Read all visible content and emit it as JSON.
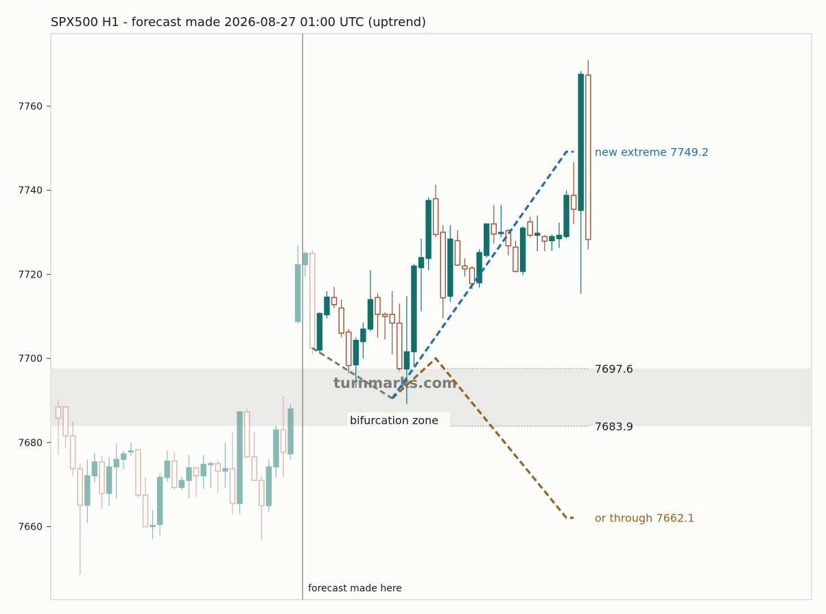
{
  "chart_data": {
    "type": "candlestick",
    "title": "SPX500 H1 - forecast made 2026-08-27 01:00 UTC (uptrend)",
    "xlabel": "",
    "ylabel": "",
    "ylim": [
      7645,
      7777
    ],
    "y_ticks": [
      7660,
      7680,
      7700,
      7720,
      7740,
      7760
    ],
    "grid": false,
    "forecast_index": 34,
    "history_candles": [
      {
        "o": 7688.5,
        "h": 7690.1,
        "l": 7677.0,
        "c": 7685.8
      },
      {
        "o": 7688.5,
        "h": 7688.5,
        "l": 7678.7,
        "c": 7681.6
      },
      {
        "o": 7681.6,
        "h": 7685.0,
        "l": 7672.1,
        "c": 7673.8
      },
      {
        "o": 7673.8,
        "h": 7675.0,
        "l": 7648.6,
        "c": 7665.1
      },
      {
        "o": 7665.1,
        "h": 7675.9,
        "l": 7660.9,
        "c": 7672.1
      },
      {
        "o": 7672.1,
        "h": 7677.5,
        "l": 7670.5,
        "c": 7675.4
      },
      {
        "o": 7675.4,
        "h": 7676.9,
        "l": 7664.2,
        "c": 7667.9
      },
      {
        "o": 7667.9,
        "h": 7676.6,
        "l": 7664.9,
        "c": 7674.2
      },
      {
        "o": 7674.2,
        "h": 7679.8,
        "l": 7666.7,
        "c": 7676.0
      },
      {
        "o": 7676.0,
        "h": 7678.0,
        "l": 7673.8,
        "c": 7677.3
      },
      {
        "o": 7678.0,
        "h": 7680.0,
        "l": 7676.9,
        "c": 7678.0
      },
      {
        "o": 7678.3,
        "h": 7678.3,
        "l": 7666.9,
        "c": 7667.5
      },
      {
        "o": 7667.5,
        "h": 7671.8,
        "l": 7660.0,
        "c": 7660.0
      },
      {
        "o": 7660.0,
        "h": 7663.8,
        "l": 7657.0,
        "c": 7660.3
      },
      {
        "o": 7660.5,
        "h": 7672.6,
        "l": 7658.0,
        "c": 7671.7
      },
      {
        "o": 7671.7,
        "h": 7678.0,
        "l": 7670.7,
        "c": 7675.6
      },
      {
        "o": 7675.6,
        "h": 7677.6,
        "l": 7668.7,
        "c": 7669.3
      },
      {
        "o": 7669.3,
        "h": 7671.9,
        "l": 7668.7,
        "c": 7671.0
      },
      {
        "o": 7671.0,
        "h": 7677.0,
        "l": 7666.7,
        "c": 7674.0
      },
      {
        "o": 7674.0,
        "h": 7674.0,
        "l": 7667.0,
        "c": 7672.1
      },
      {
        "o": 7672.1,
        "h": 7677.0,
        "l": 7669.0,
        "c": 7674.8
      },
      {
        "o": 7674.8,
        "h": 7675.4,
        "l": 7669.3,
        "c": 7675.0
      },
      {
        "o": 7675.0,
        "h": 7675.8,
        "l": 7668.0,
        "c": 7673.2
      },
      {
        "o": 7673.2,
        "h": 7680.0,
        "l": 7669.3,
        "c": 7673.8
      },
      {
        "o": 7673.8,
        "h": 7682.5,
        "l": 7663.0,
        "c": 7665.5
      },
      {
        "o": 7665.5,
        "h": 7687.0,
        "l": 7663.0,
        "c": 7687.3
      },
      {
        "o": 7687.3,
        "h": 7688.0,
        "l": 7676.6,
        "c": 7676.6
      },
      {
        "o": 7676.6,
        "h": 7682.5,
        "l": 7671.0,
        "c": 7671.0
      },
      {
        "o": 7671.0,
        "h": 7672.0,
        "l": 7656.8,
        "c": 7665.0
      },
      {
        "o": 7665.0,
        "h": 7676.0,
        "l": 7663.5,
        "c": 7674.2
      },
      {
        "o": 7674.2,
        "h": 7684.0,
        "l": 7671.7,
        "c": 7683.0
      },
      {
        "o": 7683.0,
        "h": 7691.0,
        "l": 7671.8,
        "c": 7677.7
      },
      {
        "o": 7677.3,
        "h": 7689.0,
        "l": 7676.0,
        "c": 7688.0
      },
      {
        "o": 7708.8,
        "h": 7727.0,
        "l": 7708.3,
        "c": 7722.3
      },
      {
        "o": 7722.3,
        "h": 7725.5,
        "l": 7719.5,
        "c": 7725.0
      },
      {
        "o": 7725.0,
        "h": 7725.8,
        "l": 7700.9,
        "c": 7702.5
      }
    ],
    "future_candles": [
      {
        "o": 7702.0,
        "h": 7711.0,
        "l": 7701.2,
        "c": 7710.7
      },
      {
        "o": 7710.4,
        "h": 7716.0,
        "l": 7709.5,
        "c": 7714.6
      },
      {
        "o": 7714.5,
        "h": 7717.0,
        "l": 7712.0,
        "c": 7712.8
      },
      {
        "o": 7712.0,
        "h": 7714.0,
        "l": 7705.0,
        "c": 7706.0
      },
      {
        "o": 7706.3,
        "h": 7707.0,
        "l": 7696.5,
        "c": 7698.3
      },
      {
        "o": 7698.5,
        "h": 7705.0,
        "l": 7693.0,
        "c": 7704.3
      },
      {
        "o": 7704.0,
        "h": 7708.5,
        "l": 7700.0,
        "c": 7707.0
      },
      {
        "o": 7707.0,
        "h": 7721.0,
        "l": 7706.5,
        "c": 7714.0
      },
      {
        "o": 7714.5,
        "h": 7715.5,
        "l": 7705.0,
        "c": 7710.5
      },
      {
        "o": 7710.5,
        "h": 7711.0,
        "l": 7704.5,
        "c": 7710.0
      },
      {
        "o": 7710.5,
        "h": 7716.0,
        "l": 7701.0,
        "c": 7708.4
      },
      {
        "o": 7708.4,
        "h": 7713.0,
        "l": 7697.0,
        "c": 7697.6
      },
      {
        "o": 7697.5,
        "h": 7714.8,
        "l": 7689.2,
        "c": 7701.6
      },
      {
        "o": 7701.6,
        "h": 7722.4,
        "l": 7698.0,
        "c": 7722.0
      },
      {
        "o": 7721.6,
        "h": 7728.5,
        "l": 7711.2,
        "c": 7724.0
      },
      {
        "o": 7723.8,
        "h": 7738.3,
        "l": 7721.0,
        "c": 7737.6
      },
      {
        "o": 7738.0,
        "h": 7741.3,
        "l": 7728.8,
        "c": 7729.5
      },
      {
        "o": 7730.0,
        "h": 7731.7,
        "l": 7709.5,
        "c": 7714.4
      },
      {
        "o": 7714.8,
        "h": 7731.7,
        "l": 7713.5,
        "c": 7728.4
      },
      {
        "o": 7728.0,
        "h": 7730.5,
        "l": 7722.0,
        "c": 7722.2
      },
      {
        "o": 7722.0,
        "h": 7723.8,
        "l": 7719.5,
        "c": 7721.3
      },
      {
        "o": 7721.5,
        "h": 7722.0,
        "l": 7716.5,
        "c": 7717.8
      },
      {
        "o": 7718.0,
        "h": 7726.0,
        "l": 7716.8,
        "c": 7725.2
      },
      {
        "o": 7724.5,
        "h": 7732.0,
        "l": 7724.0,
        "c": 7732.0
      },
      {
        "o": 7732.0,
        "h": 7736.5,
        "l": 7727.3,
        "c": 7729.6
      },
      {
        "o": 7729.7,
        "h": 7736.5,
        "l": 7728.8,
        "c": 7730.0
      },
      {
        "o": 7730.4,
        "h": 7730.8,
        "l": 7724.5,
        "c": 7726.8
      },
      {
        "o": 7726.5,
        "h": 7728.0,
        "l": 7720.5,
        "c": 7720.7
      },
      {
        "o": 7720.7,
        "h": 7731.4,
        "l": 7719.8,
        "c": 7731.0
      },
      {
        "o": 7732.5,
        "h": 7733.7,
        "l": 7728.8,
        "c": 7729.3
      },
      {
        "o": 7729.3,
        "h": 7734.0,
        "l": 7725.5,
        "c": 7729.8
      },
      {
        "o": 7729.0,
        "h": 7729.3,
        "l": 7725.5,
        "c": 7727.9
      },
      {
        "o": 7728.0,
        "h": 7729.5,
        "l": 7725.6,
        "c": 7729.0
      },
      {
        "o": 7728.5,
        "h": 7732.3,
        "l": 7726.3,
        "c": 7729.3
      },
      {
        "o": 7729.0,
        "h": 7740.0,
        "l": 7728.5,
        "c": 7738.8
      },
      {
        "o": 7738.8,
        "h": 7746.7,
        "l": 7732.0,
        "c": 7735.5
      },
      {
        "o": 7735.2,
        "h": 7768.4,
        "l": 7715.4,
        "c": 7767.6
      },
      {
        "o": 7767.4,
        "h": 7771.0,
        "l": 7726.0,
        "c": 7728.3
      }
    ],
    "bifurcation_zone": {
      "low": 7683.9,
      "high": 7697.6,
      "label": "bifurcation zone",
      "low_label": "7683.9",
      "high_label": "7697.6"
    },
    "approach_path": [
      {
        "i": 35,
        "y": 7702.5
      },
      {
        "i": 46,
        "y": 7690.5
      }
    ],
    "scenario_up": {
      "label": "new extreme 7749.2",
      "value": 7749.2,
      "color": "#1f6fad",
      "path": [
        {
          "i": 46,
          "y": 7690.5
        },
        {
          "i": 70,
          "y": 7749.2
        },
        {
          "i": 71,
          "y": 7749.2
        }
      ]
    },
    "scenario_down": {
      "label": "or through 7662.1",
      "value": 7662.1,
      "color": "#946420",
      "path": [
        {
          "i": 46,
          "y": 7690.5
        },
        {
          "i": 52,
          "y": 7700.0
        },
        {
          "i": 70,
          "y": 7662.1
        },
        {
          "i": 71,
          "y": 7662.1
        }
      ]
    },
    "forecast_marker_label": "forecast made here",
    "watermark": "turnmarks.com"
  }
}
